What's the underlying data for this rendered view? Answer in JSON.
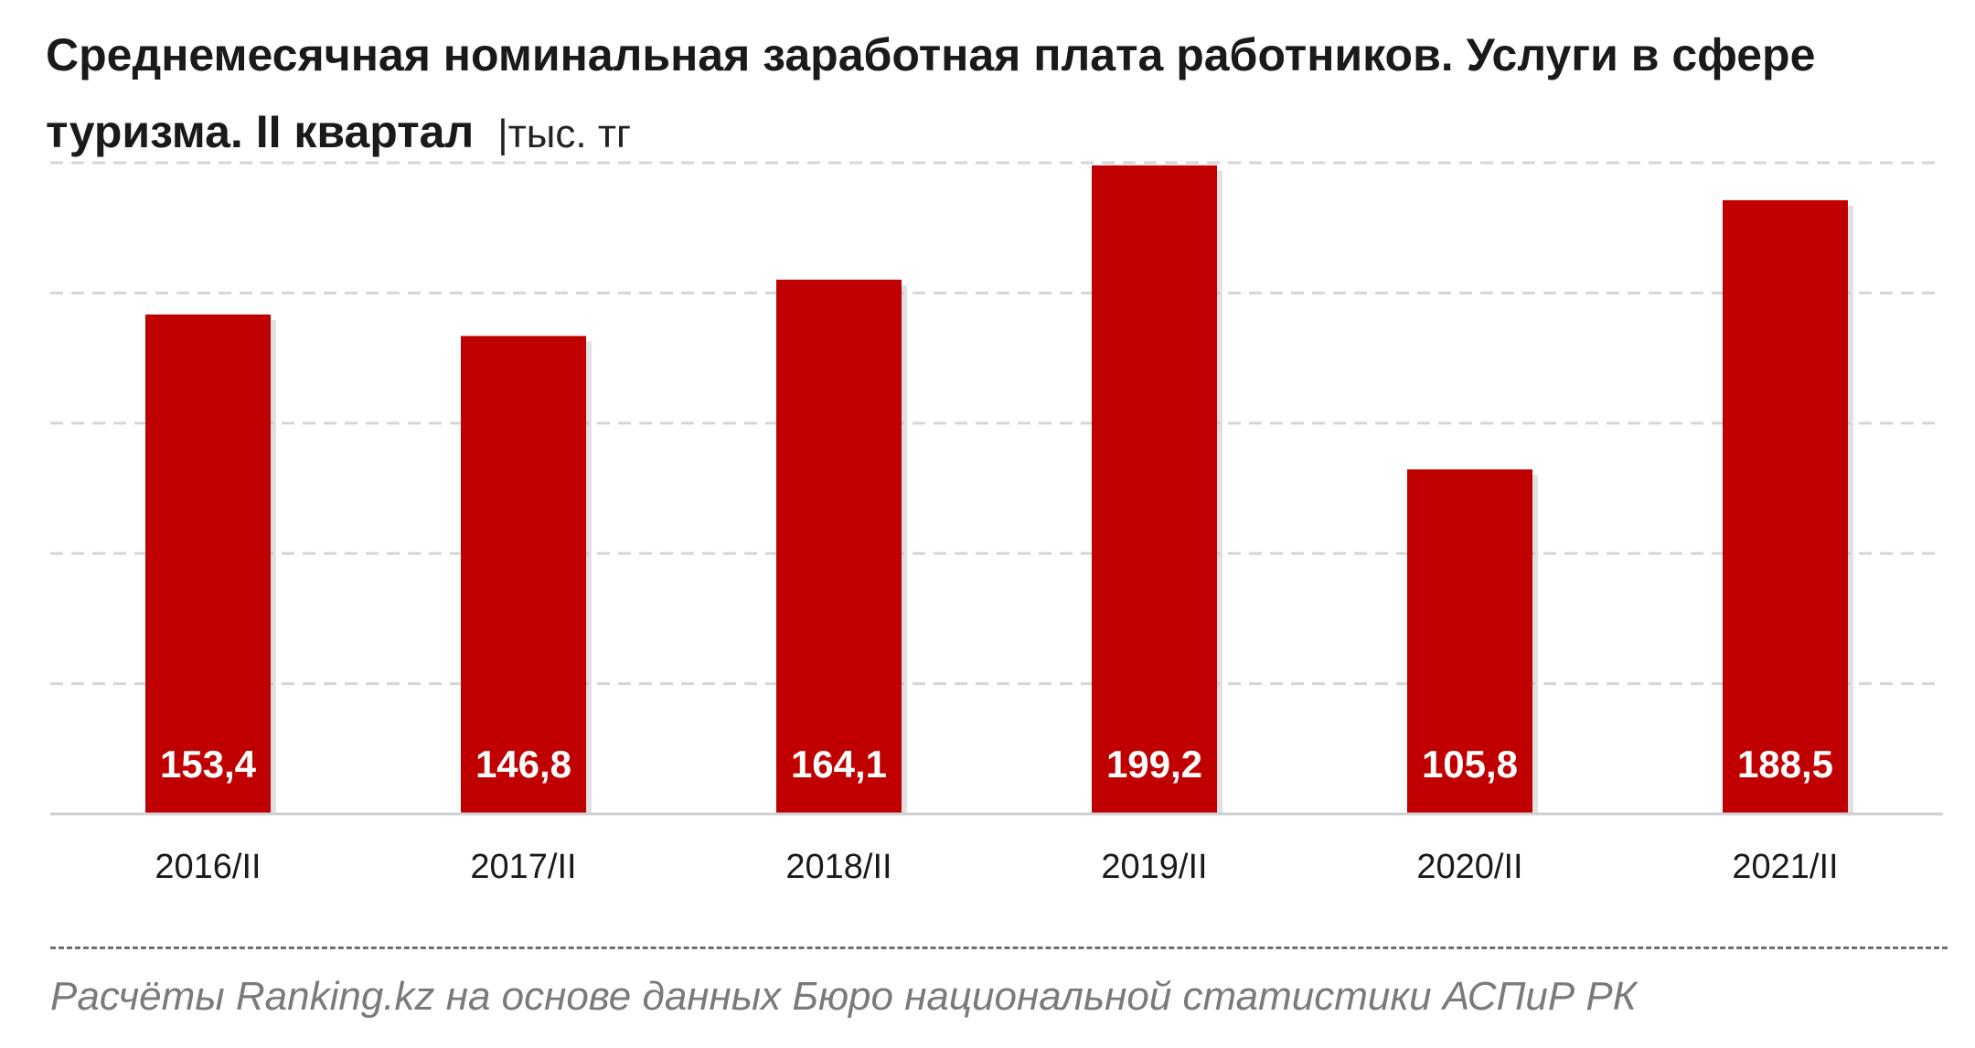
{
  "title": "Среднемесячная номинальная заработная плата работников. Услуги в сфере туризма. II квартал",
  "unit": "|тыс. тг",
  "source": "Расчёты Ranking.kz на основе данных Бюро национальной статистики АСПиР РК",
  "colors": {
    "bar": "#c00000",
    "label": "#ffffff",
    "grid": "#d6d6d6",
    "axis": "#cfcfcf"
  },
  "chart_data": {
    "type": "bar",
    "title": "Среднемесячная номинальная заработная плата работников. Услуги в сфере туризма. II квартал",
    "ylabel": "|тыс. тг",
    "categories": [
      "2016/II",
      "2017/II",
      "2018/II",
      "2019/II",
      "2020/II",
      "2021/II"
    ],
    "values": [
      153.4,
      146.8,
      164.1,
      199.2,
      105.8,
      188.5
    ],
    "data_labels": [
      "153,4",
      "146,8",
      "164,1",
      "199,2",
      "105,8",
      "188,5"
    ],
    "ylim": [
      0,
      200
    ],
    "grid": true,
    "legend": "none"
  }
}
